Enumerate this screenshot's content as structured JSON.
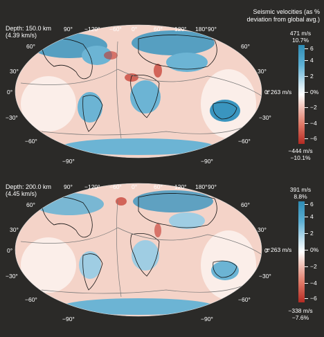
{
  "legend": {
    "title_line1": "Seismic velocities (as %",
    "title_line2": "deviation from global avg.)"
  },
  "colors": {
    "background": "#2b2a28",
    "fast": "#2e8bb3",
    "slow": "#c3342a",
    "neutral": "#ffffff"
  },
  "longitude_labels": [
    "90°",
    "−120°",
    "−60°",
    "0°",
    "60°",
    "120°",
    "180°",
    "90°"
  ],
  "latitude_labels_left": [
    "60°",
    "30°",
    "0°",
    "−30°",
    "−60°"
  ],
  "latitude_labels_right": [
    "60°",
    "30°",
    "0°",
    "−30°",
    "−60°"
  ],
  "bottom_labels": [
    "−90°",
    "−90°"
  ],
  "maps": [
    {
      "depth_label": "Depth: 150.0 km",
      "velocity_label": "(4.39 km/s)",
      "max_ms": "471 m/s",
      "max_pct": "10.7%",
      "mid_ms": "± 263 m/s",
      "min_ms": "−444 m/s",
      "min_pct": "−10.1%",
      "ticks": [
        "6",
        "4",
        "2",
        "0%",
        "−2",
        "−4",
        "−6"
      ]
    },
    {
      "depth_label": "Depth: 200.0 km",
      "velocity_label": "(4.45 km/s)",
      "max_ms": "391 m/s",
      "max_pct": "8.8%",
      "mid_ms": "± 263 m/s",
      "min_ms": "−338 m/s",
      "min_pct": "−7.6%",
      "ticks": [
        "6",
        "4",
        "2",
        "0%",
        "−2",
        "−4",
        "−6"
      ]
    }
  ]
}
